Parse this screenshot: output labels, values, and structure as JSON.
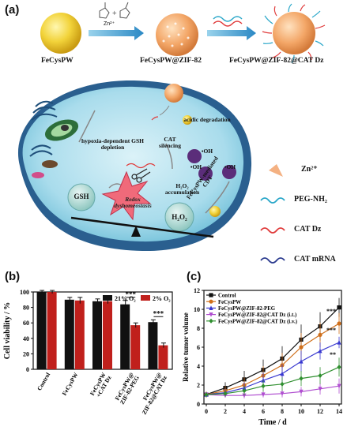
{
  "panel_a": {
    "label": "(a)",
    "zn_label": "Zn²⁺",
    "steps": [
      {
        "name": "FeCysPW"
      },
      {
        "name": "FeCysPW@ZIF-82"
      },
      {
        "name": "FeCysPW@ZIF-82@CAT Dz"
      }
    ],
    "cell": {
      "acidic_degradation": "acidic degradation",
      "hypoxia": "hypoxia-dependent GSH depletion",
      "cat_silencing": "CAT silencing",
      "h2o2_accum": "H₂O₂ accumulation",
      "gsh": "GSH",
      "h2o2": "H₂O₂",
      "redox": "Redox dyshomeostasis",
      "oh": "•OH",
      "cdt": "FeCysPW-mediated CDT"
    },
    "legend": [
      {
        "label": "Zn²⁺",
        "icon": "triangle-icon"
      },
      {
        "label": "PEG-NH₂",
        "icon": "wave-icon",
        "color": "#2aa7c9"
      },
      {
        "label": "CAT Dz",
        "icon": "wave-icon",
        "color": "#e03b3b"
      },
      {
        "label": "CAT mRNA",
        "icon": "wave-icon",
        "color": "#2b3b8f"
      }
    ]
  },
  "panel_b": {
    "label": "(b)",
    "chart_data": {
      "type": "bar",
      "ylabel": "Cell viability / %",
      "ylim": [
        0,
        100
      ],
      "yticks": [
        0,
        20,
        40,
        60,
        80,
        100
      ],
      "categories": [
        "Control",
        "FeCysPW",
        "FeCysPW +CAT Dz",
        "FeCysPW@ ZIF-82-PEG",
        "FeCysPW@ ZIF-82@CAT Dz"
      ],
      "series": [
        {
          "name": "21% O₂",
          "color": "#111111",
          "values": [
            100,
            90,
            88,
            84,
            61
          ],
          "errors": [
            2,
            3,
            3,
            5,
            3
          ]
        },
        {
          "name": "2% O₂",
          "color": "#c0201c",
          "values": [
            100,
            89,
            88,
            57,
            31
          ],
          "errors": [
            2,
            4,
            3,
            3,
            3
          ]
        }
      ],
      "annotations": [
        "***",
        "***"
      ]
    }
  },
  "panel_c": {
    "label": "(c)",
    "chart_data": {
      "type": "line",
      "xlabel": "Time / d",
      "ylabel": "Relative tumor volume",
      "xlim": [
        0,
        14
      ],
      "ylim": [
        0,
        12
      ],
      "xticks": [
        0,
        2,
        4,
        6,
        8,
        10,
        12,
        14
      ],
      "yticks": [
        0,
        2,
        4,
        6,
        8,
        10,
        12
      ],
      "x": [
        0,
        2,
        4,
        6,
        8,
        10,
        12,
        14
      ],
      "series": [
        {
          "name": "Control",
          "color": "#111111",
          "marker": "square",
          "values": [
            1,
            1.7,
            2.6,
            3.6,
            4.8,
            6.8,
            8.2,
            10.2
          ],
          "errors": [
            0.3,
            0.6,
            0.9,
            1.1,
            1.3,
            1.6,
            1.5,
            1.0
          ]
        },
        {
          "name": "FeCysPW",
          "color": "#d0701c",
          "marker": "circle",
          "values": [
            1,
            1.4,
            2.0,
            3.0,
            4.1,
            6.0,
            7.3,
            8.5
          ],
          "errors": [
            0.3,
            0.5,
            0.8,
            1.0,
            1.3,
            1.5,
            1.3,
            1.1
          ]
        },
        {
          "name": "FeCysPW@ZIF-82-PEG",
          "color": "#3a3ad0",
          "marker": "triangle",
          "values": [
            1,
            1.2,
            1.7,
            2.5,
            3.2,
            4.5,
            5.6,
            6.5
          ],
          "errors": [
            0.2,
            0.4,
            0.6,
            0.8,
            1.0,
            1.1,
            0.9,
            0.6
          ]
        },
        {
          "name": "FeCysPW@ZIF-82@CAT Dz (i.t.)",
          "color": "#b04fd0",
          "marker": "triangle-down",
          "values": [
            1,
            0.9,
            0.9,
            1.0,
            1.1,
            1.3,
            1.6,
            1.9
          ],
          "errors": [
            0.2,
            0.2,
            0.3,
            0.3,
            0.4,
            0.5,
            0.6,
            0.8
          ]
        },
        {
          "name": "FeCysPW@ZIF-82@CAT Dz (i.v.)",
          "color": "#2f8f2f",
          "marker": "diamond",
          "values": [
            1,
            1.1,
            1.4,
            1.9,
            2.1,
            2.7,
            3.0,
            3.9
          ],
          "errors": [
            0.2,
            0.3,
            0.5,
            0.6,
            0.7,
            0.8,
            0.9,
            1.0
          ]
        }
      ],
      "annotations": [
        "***",
        "***",
        "**"
      ]
    }
  }
}
